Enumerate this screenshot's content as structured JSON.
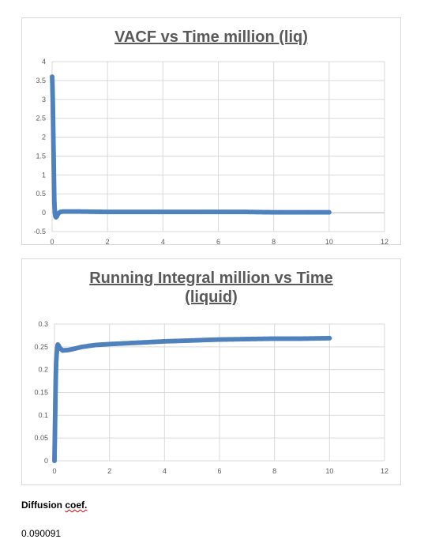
{
  "chart_data": [
    {
      "type": "scatter",
      "title": "VACF vs Time million (liq)",
      "xlabel": "",
      "ylabel": "",
      "xlim": [
        0,
        12
      ],
      "ylim": [
        -0.5,
        4
      ],
      "x_ticks": [
        0,
        2,
        4,
        6,
        8,
        10,
        12
      ],
      "y_ticks": [
        -0.5,
        0,
        0.5,
        1,
        1.5,
        2,
        2.5,
        3,
        3.5,
        4
      ],
      "y_tick_labels": [
        "-0.5",
        "0",
        "0.5",
        "1",
        "1.5",
        "2",
        "2.5",
        "3",
        "3.5",
        "4"
      ],
      "grid": true,
      "color": "#4f81bd",
      "x": [
        0.0,
        0.01,
        0.02,
        0.03,
        0.04,
        0.05,
        0.06,
        0.07,
        0.08,
        0.1,
        0.12,
        0.14,
        0.17,
        0.2,
        0.25,
        0.3,
        0.4,
        0.6,
        1,
        2,
        3,
        4,
        5,
        6,
        7,
        8,
        9,
        10
      ],
      "y": [
        3.6,
        3.4,
        3.1,
        2.7,
        2.2,
        1.7,
        1.2,
        0.7,
        0.3,
        0.0,
        -0.1,
        -0.12,
        -0.1,
        -0.05,
        0.0,
        0.02,
        0.03,
        0.03,
        0.03,
        0.02,
        0.02,
        0.02,
        0.02,
        0.02,
        0.02,
        0.01,
        0.01,
        0.01
      ]
    },
    {
      "type": "scatter",
      "title": "Running Integral million vs Time (liquid)",
      "xlabel": "",
      "ylabel": "",
      "xlim": [
        0,
        12
      ],
      "ylim": [
        0,
        0.3
      ],
      "x_ticks": [
        0,
        2,
        4,
        6,
        8,
        10,
        12
      ],
      "y_ticks": [
        0,
        0.05,
        0.1,
        0.15,
        0.2,
        0.25,
        0.3
      ],
      "y_tick_labels": [
        "0",
        "0.05",
        "0.1",
        "0.15",
        "0.2",
        "0.25",
        "0.3"
      ],
      "grid": true,
      "color": "#4f81bd",
      "x": [
        0.0,
        0.01,
        0.02,
        0.03,
        0.04,
        0.05,
        0.06,
        0.08,
        0.1,
        0.12,
        0.15,
        0.2,
        0.3,
        0.5,
        0.8,
        1,
        1.5,
        2,
        3,
        4,
        5,
        6,
        7,
        8,
        9,
        10
      ],
      "y": [
        0.0,
        0.04,
        0.08,
        0.12,
        0.16,
        0.19,
        0.215,
        0.235,
        0.248,
        0.255,
        0.253,
        0.247,
        0.242,
        0.243,
        0.247,
        0.25,
        0.254,
        0.256,
        0.259,
        0.262,
        0.264,
        0.266,
        0.267,
        0.268,
        0.268,
        0.269
      ]
    }
  ],
  "diffusion": {
    "label_prefix": "Diffusion ",
    "label_misspelled": "coef.",
    "value": "0.090091"
  }
}
